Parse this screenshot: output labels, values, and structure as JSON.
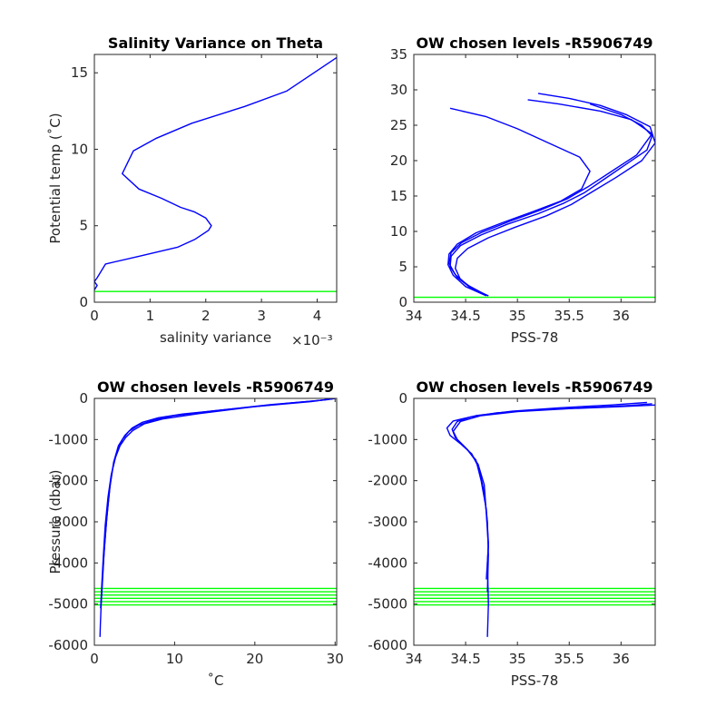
{
  "colors": {
    "profile": "#0000ff",
    "level": "#00ff00",
    "axis": "#262626",
    "background": "#ffffff"
  },
  "chart_data": [
    {
      "type": "line",
      "title": "Salinity Variance on Theta",
      "xlabel": "salinity variance",
      "x_exponent": "×10⁻³",
      "ylabel": "Potential temp (˚C)",
      "xlim": [
        0,
        4.35
      ],
      "ylim": [
        0,
        16.2
      ],
      "xticks": [
        "0",
        "1",
        "2",
        "3",
        "4"
      ],
      "yticks": [
        "0",
        "5",
        "10",
        "15"
      ],
      "series": [
        {
          "x": [
            0.0,
            0.05,
            0.0,
            0.05,
            0.2,
            0.8,
            1.5,
            1.8,
            2.05,
            2.1,
            2.0,
            1.8,
            1.55,
            1.2,
            0.8,
            0.5,
            0.7,
            1.1,
            1.75,
            2.7,
            3.45,
            4.35
          ],
          "y": [
            0.8,
            1.1,
            1.35,
            1.6,
            2.5,
            3.0,
            3.6,
            4.1,
            4.7,
            5.0,
            5.5,
            5.9,
            6.2,
            6.8,
            7.4,
            8.4,
            9.9,
            10.7,
            11.7,
            12.8,
            13.8,
            16.0
          ]
        }
      ],
      "hlines": [
        0.7
      ]
    },
    {
      "type": "line",
      "title": "OW chosen levels -R5906749",
      "xlabel": "PSS-78",
      "ylabel": "",
      "xlim": [
        34.0,
        36.33
      ],
      "ylim": [
        0,
        35
      ],
      "xticks": [
        "34",
        "34.5",
        "35",
        "35.5",
        "36"
      ],
      "yticks": [
        "0",
        "5",
        "10",
        "15",
        "20",
        "25",
        "30",
        "35"
      ],
      "series": [
        {
          "x": [
            34.72,
            34.55,
            34.42,
            34.35,
            34.36,
            34.45,
            34.65,
            34.9,
            35.2,
            35.45,
            35.65,
            35.85,
            36.05,
            36.25,
            36.3,
            36.2,
            36.0,
            35.8,
            35.7
          ],
          "y": [
            0.9,
            2.0,
            3.5,
            5.0,
            6.5,
            8.0,
            9.5,
            11.0,
            12.5,
            14.0,
            15.5,
            17.5,
            19.5,
            21.5,
            23.5,
            25.0,
            26.5,
            27.5,
            28.0
          ]
        },
        {
          "x": [
            34.7,
            34.5,
            34.38,
            34.33,
            34.34,
            34.42,
            34.6,
            34.85,
            35.15,
            35.42,
            35.62,
            35.7,
            35.6,
            35.3,
            35.0,
            34.7,
            34.35
          ],
          "y": [
            0.9,
            2.2,
            3.8,
            5.3,
            6.8,
            8.2,
            9.8,
            11.2,
            12.8,
            14.3,
            16.0,
            18.5,
            20.5,
            22.5,
            24.5,
            26.2,
            27.4
          ]
        },
        {
          "x": [
            34.72,
            34.58,
            34.45,
            34.4,
            34.42,
            34.52,
            34.72,
            34.98,
            35.28,
            35.52,
            35.7,
            35.95,
            36.2,
            36.33,
            36.28,
            36.05,
            35.8,
            35.5,
            35.2
          ],
          "y": [
            0.9,
            1.8,
            3.2,
            4.8,
            6.2,
            7.6,
            9.1,
            10.6,
            12.2,
            13.8,
            15.4,
            17.6,
            20.0,
            22.5,
            24.8,
            26.5,
            27.8,
            28.8,
            29.5
          ]
        },
        {
          "x": [
            34.7,
            34.52,
            34.4,
            34.34,
            34.36,
            34.46,
            34.66,
            34.92,
            35.22,
            35.48,
            35.68,
            35.9,
            36.15,
            36.3,
            36.1,
            35.8,
            35.4,
            35.1
          ],
          "y": [
            1.0,
            2.4,
            3.9,
            5.5,
            7.0,
            8.4,
            9.9,
            11.4,
            13.0,
            14.6,
            16.3,
            18.4,
            20.8,
            23.8,
            25.8,
            27.0,
            28.0,
            28.6
          ]
        }
      ],
      "hlines": [
        0.7
      ]
    },
    {
      "type": "line",
      "title": "OW chosen levels -R5906749",
      "xlabel": "˚C",
      "ylabel": "Pressure (dbar)",
      "xlim": [
        0,
        30.2
      ],
      "ylim": [
        -6000,
        0
      ],
      "xticks": [
        "0",
        "10",
        "20",
        "30"
      ],
      "yticks": [
        "-6000",
        "-5000",
        "-4000",
        "-3000",
        "-2000",
        "-1000",
        "0"
      ],
      "series": [
        {
          "x": [
            30.0,
            28.0,
            22.0,
            15.0,
            10.0,
            7.5,
            5.5,
            4.3,
            3.5,
            2.8,
            2.3,
            1.9,
            1.5,
            1.2,
            1.0,
            0.85,
            0.75,
            0.7
          ],
          "y": [
            0,
            -50,
            -150,
            -300,
            -420,
            -520,
            -650,
            -800,
            -1000,
            -1300,
            -1700,
            -2200,
            -3000,
            -3800,
            -4500,
            -5000,
            -5500,
            -5800
          ]
        },
        {
          "x": [
            30.0,
            27.0,
            20.0,
            13.0,
            8.5,
            6.2,
            4.8,
            3.9,
            3.2,
            2.6,
            2.1,
            1.7,
            1.35,
            1.1,
            0.9,
            0.78
          ],
          "y": [
            0,
            -80,
            -200,
            -370,
            -500,
            -620,
            -780,
            -950,
            -1150,
            -1450,
            -1850,
            -2400,
            -3100,
            -3900,
            -4600,
            -5100
          ]
        },
        {
          "x": [
            30.0,
            29.0,
            24.0,
            17.0,
            11.0,
            8.0,
            6.0,
            4.7,
            3.8,
            3.0,
            2.4,
            2.0,
            1.6,
            1.25,
            1.0,
            0.8
          ],
          "y": [
            0,
            -30,
            -120,
            -260,
            -380,
            -470,
            -580,
            -720,
            -900,
            -1150,
            -1550,
            -2050,
            -2800,
            -3600,
            -4400,
            -5100
          ]
        }
      ],
      "hlines": [
        -4620,
        -4700,
        -4780,
        -4860,
        -4940,
        -5020
      ]
    },
    {
      "type": "line",
      "title": "OW chosen levels -R5906749",
      "xlabel": "PSS-78",
      "ylabel": "",
      "xlim": [
        34.0,
        36.33
      ],
      "ylim": [
        -6000,
        0
      ],
      "xticks": [
        "34",
        "34.5",
        "35",
        "35.5",
        "36"
      ],
      "yticks": [
        "-6000",
        "-5000",
        "-4000",
        "-3000",
        "-2000",
        "-1000",
        "0"
      ],
      "series": [
        {
          "x": [
            36.3,
            36.1,
            35.7,
            35.2,
            34.8,
            34.55,
            34.42,
            34.37,
            34.4,
            34.5,
            34.6,
            34.65,
            34.7,
            34.72,
            34.71,
            34.72,
            34.71
          ],
          "y": [
            -130,
            -170,
            -220,
            -280,
            -350,
            -450,
            -560,
            -750,
            -950,
            -1200,
            -1500,
            -2000,
            -2700,
            -3500,
            -4000,
            -5000,
            -5800
          ]
        },
        {
          "x": [
            36.25,
            35.9,
            35.4,
            34.95,
            34.6,
            34.38,
            34.32,
            34.35,
            34.45,
            34.56,
            34.63,
            34.68,
            34.71,
            34.72,
            34.71
          ],
          "y": [
            -100,
            -160,
            -230,
            -310,
            -420,
            -550,
            -720,
            -900,
            -1100,
            -1350,
            -1700,
            -2300,
            -3000,
            -3800,
            -4700
          ]
        },
        {
          "x": [
            36.33,
            36.0,
            35.5,
            35.0,
            34.65,
            34.45,
            34.38,
            34.42,
            34.52,
            34.62,
            34.68,
            34.7,
            34.72,
            34.7
          ],
          "y": [
            -160,
            -200,
            -250,
            -320,
            -420,
            -560,
            -800,
            -1000,
            -1250,
            -1600,
            -2100,
            -2800,
            -3600,
            -4400
          ]
        }
      ],
      "hlines": [
        -4620,
        -4700,
        -4780,
        -4860,
        -4940,
        -5020
      ]
    }
  ]
}
